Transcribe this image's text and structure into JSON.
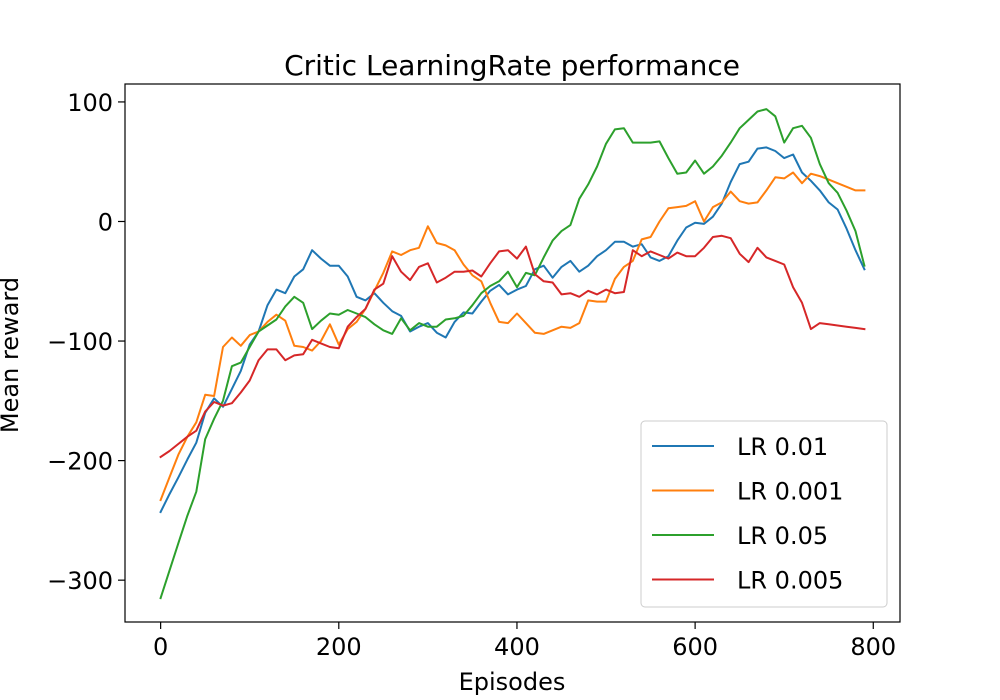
{
  "chart_data": {
    "type": "line",
    "title": "Critic LearningRate performance",
    "xlabel": "Episodes",
    "ylabel": "Mean reward",
    "xlim": [
      -40,
      830
    ],
    "ylim": [
      -335,
      115
    ],
    "xticks": [
      0,
      200,
      400,
      600,
      800
    ],
    "xtick_labels": [
      "0",
      "200",
      "400",
      "600",
      "800"
    ],
    "yticks": [
      -300,
      -200,
      -100,
      0,
      100
    ],
    "ytick_labels": [
      "−300",
      "−200",
      "−100",
      "0",
      "100"
    ],
    "grid": false,
    "legend_position": "lower-right",
    "x": [
      0,
      10,
      20,
      30,
      40,
      50,
      60,
      70,
      80,
      90,
      100,
      110,
      120,
      130,
      140,
      150,
      160,
      170,
      180,
      190,
      200,
      210,
      220,
      230,
      240,
      250,
      260,
      270,
      280,
      290,
      300,
      310,
      320,
      330,
      340,
      350,
      360,
      370,
      380,
      390,
      400,
      410,
      420,
      430,
      440,
      450,
      460,
      470,
      480,
      490,
      500,
      510,
      520,
      530,
      540,
      550,
      560,
      570,
      580,
      590,
      600,
      610,
      620,
      630,
      640,
      650,
      660,
      670,
      680,
      690,
      700,
      710,
      720,
      730,
      740,
      750,
      760,
      770,
      780,
      790
    ],
    "series": [
      {
        "name": "LR 0.01",
        "color": "#1f77b4",
        "values": [
          -243,
          -228,
          -214,
          -199,
          -185,
          -160,
          -148,
          -155,
          -140,
          -125,
          -103,
          -92,
          -70,
          -57,
          -60,
          -46,
          -40,
          -24,
          -31,
          -37,
          -37,
          -46,
          -63,
          -66,
          -60,
          -68,
          -75,
          -79,
          -92,
          -88,
          -85,
          -93,
          -97,
          -84,
          -76,
          -77,
          -67,
          -58,
          -53,
          -61,
          -57,
          -54,
          -40,
          -37,
          -47,
          -38,
          -33,
          -42,
          -37,
          -29,
          -24,
          -17,
          -17,
          -21,
          -19,
          -30,
          -33,
          -29,
          -16,
          -5,
          -1,
          -2,
          4,
          15,
          33,
          48,
          50,
          61,
          62,
          59,
          53,
          56,
          41,
          34,
          26,
          16,
          10,
          -6,
          -24,
          -40
        ]
      },
      {
        "name": "LR 0.001",
        "color": "#ff7f0e",
        "values": [
          -233,
          -214,
          -195,
          -180,
          -168,
          -145,
          -146,
          -105,
          -97,
          -104,
          -95,
          -92,
          -84,
          -78,
          -83,
          -104,
          -105,
          -108,
          -100,
          -86,
          -103,
          -90,
          -84,
          -73,
          -58,
          -43,
          -25,
          -28,
          -24,
          -22,
          -4,
          -18,
          -20,
          -24,
          -36,
          -45,
          -50,
          -68,
          -84,
          -85,
          -77,
          -85,
          -93,
          -94,
          -91,
          -88,
          -89,
          -85,
          -66,
          -67,
          -67,
          -48,
          -38,
          -33,
          -15,
          -13,
          0,
          11,
          12,
          13,
          17,
          0,
          12,
          16,
          25,
          17,
          15,
          16,
          26,
          37,
          36,
          41,
          32,
          40,
          38,
          35,
          32,
          29,
          26,
          26
        ]
      },
      {
        "name": "LR 0.05",
        "color": "#2ca02c",
        "values": [
          -315,
          -292,
          -269,
          -246,
          -226,
          -182,
          -165,
          -150,
          -121,
          -118,
          -105,
          -92,
          -87,
          -82,
          -71,
          -63,
          -68,
          -90,
          -83,
          -77,
          -78,
          -74,
          -77,
          -80,
          -86,
          -91,
          -94,
          -81,
          -91,
          -85,
          -88,
          -88,
          -82,
          -81,
          -79,
          -70,
          -60,
          -54,
          -50,
          -42,
          -55,
          -43,
          -45,
          -30,
          -16,
          -8,
          -3,
          19,
          31,
          46,
          65,
          77,
          78,
          66,
          66,
          66,
          67,
          53,
          40,
          41,
          51,
          40,
          46,
          55,
          66,
          78,
          85,
          92,
          94,
          88,
          66,
          78,
          80,
          70,
          48,
          32,
          24,
          9,
          -8,
          -37
        ]
      },
      {
        "name": "LR 0.005",
        "color": "#d62728",
        "values": [
          -197,
          -192,
          -186,
          -180,
          -175,
          -159,
          -151,
          -154,
          -152,
          -143,
          -133,
          -116,
          -107,
          -107,
          -116,
          -112,
          -111,
          -99,
          -102,
          -105,
          -106,
          -88,
          -80,
          -73,
          -57,
          -52,
          -29,
          -42,
          -49,
          -38,
          -35,
          -51,
          -47,
          -42,
          -42,
          -41,
          -46,
          -35,
          -25,
          -24,
          -31,
          -21,
          -44,
          -50,
          -51,
          -61,
          -60,
          -63,
          -58,
          -61,
          -57,
          -60,
          -59,
          -24,
          -29,
          -25,
          -28,
          -31,
          -26,
          -29,
          -29,
          -22,
          -13,
          -12,
          -14,
          -27,
          -34,
          -22,
          -30,
          -33,
          -36,
          -55,
          -68,
          -90,
          -85,
          -86,
          -87,
          -88,
          -89,
          -90
        ]
      }
    ]
  }
}
